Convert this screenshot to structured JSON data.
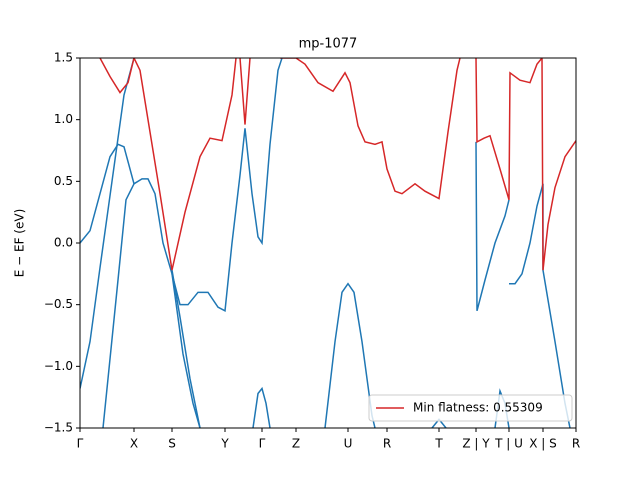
{
  "chart_data": {
    "type": "line",
    "title": "mp-1077",
    "ylabel": "E − EF (eV)",
    "xlim": [
      0,
      496
    ],
    "ylim": [
      -1.5,
      1.5
    ],
    "xticks": [
      {
        "value": 0,
        "label": "Γ"
      },
      {
        "value": 54,
        "label": "X"
      },
      {
        "value": 92,
        "label": "S"
      },
      {
        "value": 145,
        "label": "Y"
      },
      {
        "value": 182,
        "label": "Γ"
      },
      {
        "value": 216,
        "label": "Z"
      },
      {
        "value": 268,
        "label": "U"
      },
      {
        "value": 307,
        "label": "R"
      },
      {
        "value": 359,
        "label": "T"
      },
      {
        "value": 396,
        "label": "Z | Y"
      },
      {
        "value": 429,
        "label": "T | U"
      },
      {
        "value": 463,
        "label": "X | S"
      },
      {
        "value": 496,
        "label": "R"
      }
    ],
    "yticks": [
      {
        "value": -1.5,
        "label": "−1.5"
      },
      {
        "value": -1.0,
        "label": "−1.0"
      },
      {
        "value": -0.5,
        "label": "−0.5"
      },
      {
        "value": 0.0,
        "label": "0.0"
      },
      0.5,
      {
        "value": 1.0,
        "label": "1.0"
      },
      1.5
    ],
    "legend_position": "lower right",
    "series": [
      {
        "color": "#1f77b4",
        "x": [
          0,
          10,
          20,
          30,
          38,
          44,
          54,
          62,
          68,
          75,
          83,
          92,
          100,
          108,
          118,
          128,
          138,
          145,
          152,
          160,
          165,
          172,
          178,
          182,
          190,
          198,
          202
        ],
        "values": [
          0.0,
          0.1,
          0.4,
          0.7,
          0.8,
          0.78,
          0.48,
          0.52,
          0.52,
          0.4,
          0.0,
          -0.25,
          -0.5,
          -0.5,
          -0.4,
          -0.4,
          -0.52,
          -0.55,
          0.0,
          0.55,
          0.93,
          0.4,
          0.05,
          0.0,
          0.8,
          1.4,
          1.5
        ]
      },
      {
        "color": "#1f77b4",
        "x": [
          0,
          10,
          20,
          32,
          44,
          54
        ],
        "values": [
          -1.18,
          -0.8,
          -0.2,
          0.5,
          1.2,
          1.5
        ]
      },
      {
        "color": "#1f77b4",
        "x": [
          23,
          38,
          46,
          54
        ],
        "values": [
          -1.5,
          -0.3,
          0.35,
          0.48
        ]
      },
      {
        "color": "#1f77b4",
        "x": [
          92,
          100,
          110,
          120
        ],
        "values": [
          -0.22,
          -0.6,
          -1.1,
          -1.5
        ]
      },
      {
        "color": "#1f77b4",
        "x": [
          92,
          103,
          113,
          120
        ],
        "values": [
          -0.25,
          -0.9,
          -1.3,
          -1.5
        ]
      },
      {
        "color": "#1f77b4",
        "x": [
          173,
          178,
          182,
          186,
          190
        ],
        "values": [
          -1.5,
          -1.22,
          -1.18,
          -1.3,
          -1.5
        ]
      },
      {
        "color": "#1f77b4",
        "x": [
          245,
          255,
          262,
          268,
          274,
          282,
          292,
          295
        ],
        "values": [
          -1.5,
          -0.8,
          -0.4,
          -0.33,
          -0.4,
          -0.8,
          -1.4,
          -1.5
        ]
      },
      {
        "color": "#1f77b4",
        "x": [
          352,
          359,
          366
        ],
        "values": [
          -1.5,
          -1.43,
          -1.5
        ]
      },
      {
        "color": "#1f77b4",
        "x": [
          396,
          397,
          405,
          415,
          425,
          429
        ],
        "values": [
          0.82,
          -0.55,
          -0.3,
          0.0,
          0.22,
          0.35
        ]
      },
      {
        "color": "#1f77b4",
        "x": [
          415,
          420,
          425,
          429
        ],
        "values": [
          -1.5,
          -1.2,
          -1.3,
          -1.5
        ]
      },
      {
        "color": "#1f77b4",
        "x": [
          429,
          430,
          435,
          442,
          450,
          457,
          463,
          463,
          475,
          485,
          490
        ],
        "values": [
          -0.33,
          -0.33,
          -0.33,
          -0.25,
          0.0,
          0.3,
          0.48,
          -0.22,
          -0.8,
          -1.3,
          -1.5
        ]
      },
      {
        "name": "Min flatness: 0.55309",
        "color": "#d62728",
        "x": [
          20,
          30,
          40,
          48,
          54,
          60,
          70,
          80,
          92,
          105,
          120,
          130,
          142,
          152,
          156,
          158,
          160,
          165,
          170,
          172,
          200,
          216,
          225,
          238,
          253,
          265,
          270,
          278,
          285,
          295,
          302,
          307,
          315,
          322,
          335,
          345,
          359,
          368,
          377,
          380,
          390,
          396,
          397,
          404,
          410,
          420,
          429,
          430,
          440,
          450,
          457,
          462,
          463,
          468,
          475,
          485,
          496
        ],
        "values": [
          1.5,
          1.35,
          1.22,
          1.3,
          1.5,
          1.4,
          0.9,
          0.4,
          -0.22,
          0.25,
          0.7,
          0.85,
          0.83,
          1.2,
          1.5,
          null,
          1.5,
          0.96,
          1.5,
          null,
          1.5,
          1.5,
          1.45,
          1.3,
          1.23,
          1.38,
          1.3,
          0.95,
          0.82,
          0.8,
          0.82,
          0.6,
          0.42,
          0.4,
          0.48,
          0.42,
          0.36,
          0.9,
          1.4,
          1.5,
          null,
          1.5,
          0.82,
          0.85,
          0.87,
          0.6,
          0.35,
          1.38,
          1.32,
          1.3,
          1.45,
          1.5,
          -0.22,
          0.15,
          0.45,
          0.7,
          0.83
        ]
      }
    ]
  }
}
